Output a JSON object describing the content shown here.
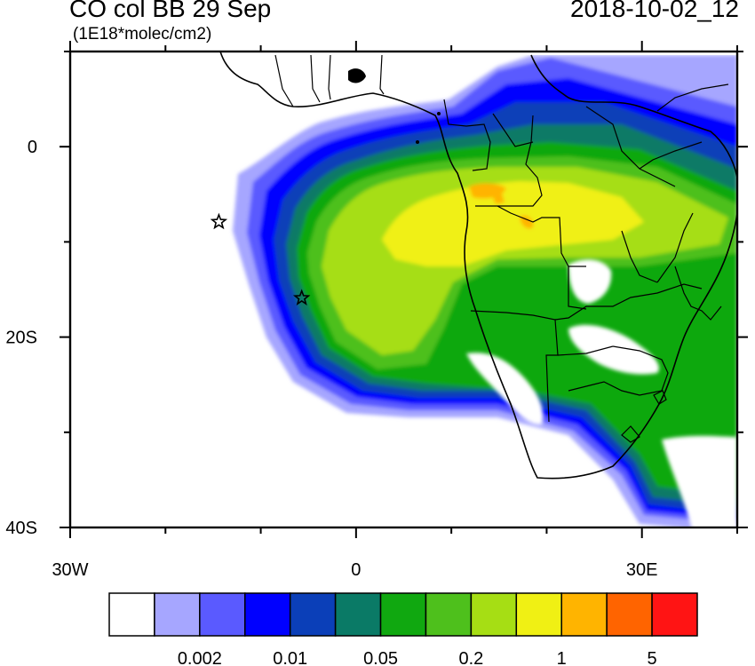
{
  "title": "CO col BB 29 Sep",
  "subtitle": "(1E18*molec/cm2)",
  "date_label": "2018-10-02_12",
  "axes": {
    "lon_ticks": [
      {
        "value": -30,
        "label": "30W"
      },
      {
        "value": 0,
        "label": "0"
      },
      {
        "value": 30,
        "label": "30E"
      }
    ],
    "lat_ticks": [
      {
        "value": 0,
        "label": "0"
      },
      {
        "value": -20,
        "label": "20S"
      },
      {
        "value": -40,
        "label": "40S"
      }
    ],
    "lon_range": [
      -30,
      40
    ],
    "lat_range": [
      -40,
      10
    ]
  },
  "colorbar": {
    "colors": [
      "#ffffff",
      "#a6a6ff",
      "#5a5aff",
      "#0000ff",
      "#0b3fb8",
      "#0a7a66",
      "#10a810",
      "#4ec01c",
      "#a6de14",
      "#f0f014",
      "#ffb400",
      "#ff6400",
      "#ff1414"
    ],
    "labels": [
      {
        "boundary": 2,
        "text": "0.002"
      },
      {
        "boundary": 4,
        "text": "0.01"
      },
      {
        "boundary": 6,
        "text": "0.05"
      },
      {
        "boundary": 8,
        "text": "0.2"
      },
      {
        "boundary": 10,
        "text": "1"
      },
      {
        "boundary": 12,
        "text": "5"
      }
    ]
  },
  "markers": [
    {
      "lon": -14.4,
      "lat": -7.9,
      "symbol": "star"
    },
    {
      "lon": -5.7,
      "lat": -15.9,
      "symbol": "star"
    }
  ],
  "colors": {
    "land_outline": "#000000",
    "background": "#ffffff"
  }
}
